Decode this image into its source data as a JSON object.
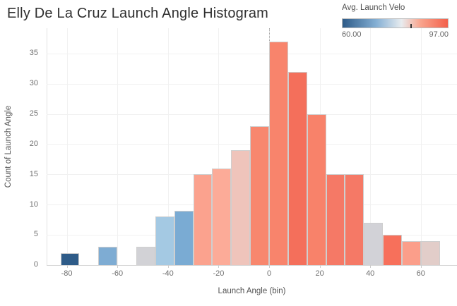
{
  "title": "Elly De La Cruz Launch Angle Histogram",
  "legend": {
    "title": "Avg. Launch Velo",
    "min_label": "60.00",
    "max_label": "97.00",
    "gradient_stops": [
      "#2E5B88 0%",
      "#84AFD4 32%",
      "#E8ECEF 56%",
      "#F9A48D 74%",
      "#F3604B 100%"
    ],
    "tick_percent": 64
  },
  "chart_data": {
    "type": "bar",
    "title": "Elly De La Cruz Launch Angle Histogram",
    "xlabel": "Launch Angle (bin)",
    "ylabel": "Count of Launch Angle",
    "legend_title": "Avg. Launch Velo",
    "color_scale": {
      "min": 60.0,
      "max": 97.0,
      "min_color": "#2E5B88",
      "mid_color": "#E8ECEF",
      "max_color": "#F3604B"
    },
    "bin_width": 7.5,
    "x_ticks": [
      -80,
      -60,
      -40,
      -20,
      0,
      20,
      40,
      60
    ],
    "y_ticks": [
      0,
      5,
      10,
      15,
      20,
      25,
      30,
      35
    ],
    "xlim": [
      -88,
      74.5
    ],
    "ylim": [
      0,
      39
    ],
    "grid": true,
    "legend_position": "top-right",
    "bars": [
      {
        "bin_start": -82.5,
        "count": 2,
        "color": "#2E5B88"
      },
      {
        "bin_start": -67.5,
        "count": 3,
        "color": "#7EACD3"
      },
      {
        "bin_start": -52.5,
        "count": 3,
        "color": "#D2D2D6"
      },
      {
        "bin_start": -45,
        "count": 8,
        "color": "#A4C9E3"
      },
      {
        "bin_start": -37.5,
        "count": 9,
        "color": "#7AABD3"
      },
      {
        "bin_start": -30,
        "count": 15,
        "color": "#FBA28E"
      },
      {
        "bin_start": -22.5,
        "count": 16,
        "color": "#FCAB98"
      },
      {
        "bin_start": -15,
        "count": 19,
        "color": "#EFC4BB"
      },
      {
        "bin_start": -7.5,
        "count": 23,
        "color": "#F8876E"
      },
      {
        "bin_start": 0,
        "count": 37,
        "color": "#F8846C"
      },
      {
        "bin_start": 7.5,
        "count": 32,
        "color": "#F46F5B"
      },
      {
        "bin_start": 15,
        "count": 25,
        "color": "#F8826A"
      },
      {
        "bin_start": 22.5,
        "count": 15,
        "color": "#F57966"
      },
      {
        "bin_start": 30,
        "count": 15,
        "color": "#F57966"
      },
      {
        "bin_start": 37.5,
        "count": 7,
        "color": "#D2D2D7"
      },
      {
        "bin_start": 45,
        "count": 5,
        "color": "#F7705B"
      },
      {
        "bin_start": 52.5,
        "count": 4,
        "color": "#FB9E8A"
      },
      {
        "bin_start": 60,
        "count": 4,
        "color": "#E2CDC9"
      }
    ]
  }
}
